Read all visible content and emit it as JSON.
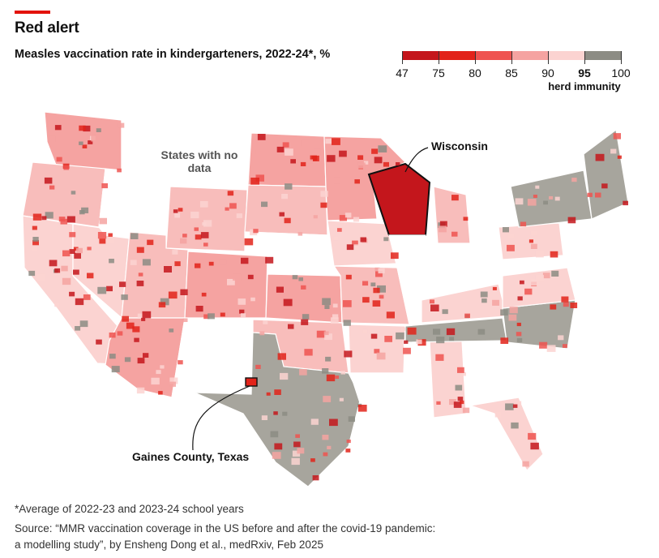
{
  "header": {
    "title": "Red alert",
    "subtitle": "Measles vaccination rate in kindergarteners, 2022-24*, %"
  },
  "legend": {
    "ticks": [
      "47",
      "75",
      "80",
      "85",
      "90",
      "95",
      "100"
    ],
    "herd_label": "herd immunity",
    "herd_value": "95",
    "bins": [
      {
        "from": 47,
        "to": 75,
        "color": "#c4161c"
      },
      {
        "from": 75,
        "to": 80,
        "color": "#e2231a"
      },
      {
        "from": 80,
        "to": 85,
        "color": "#ef5350"
      },
      {
        "from": 85,
        "to": 90,
        "color": "#f5a3a1"
      },
      {
        "from": 90,
        "to": 95,
        "color": "#fbd3d1"
      },
      {
        "from": 95,
        "to": 100,
        "color": "#8c8c84"
      }
    ]
  },
  "map": {
    "nodata_label": "States with no data",
    "callouts": {
      "wisconsin": "Wisconsin",
      "gaines": "Gaines County, Texas"
    },
    "colors": {
      "nodata": "#ffffff",
      "border": "#bbbbbb"
    }
  },
  "footer": {
    "footnote": "*Average of 2022-23 and 2023-24 school years",
    "source": "Source: “MMR vaccination coverage in the US before and after the covid-19 pandemic: a modelling study”, by Ensheng Dong et al., medRxiv, Feb 2025"
  }
}
